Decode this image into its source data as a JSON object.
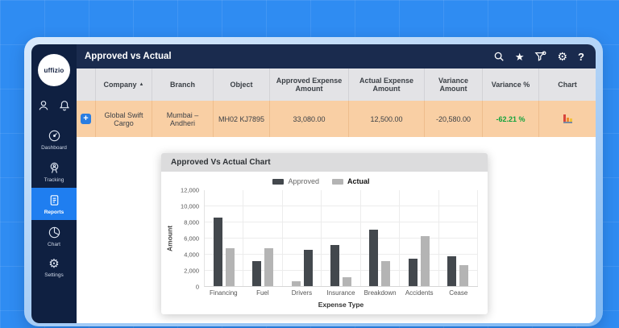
{
  "topbar": {
    "title": "Approved vs Actual"
  },
  "icons": {
    "sort_asc": "▲",
    "star": "★",
    "gear": "⚙",
    "help": "?",
    "plus": "+"
  },
  "sidebar": {
    "logo_text": "uffizio",
    "items": [
      {
        "label": "Dashboard",
        "active": false
      },
      {
        "label": "Tracking",
        "active": false
      },
      {
        "label": "Reports",
        "active": true
      },
      {
        "label": "Chart",
        "active": false
      },
      {
        "label": "Settings",
        "active": false
      }
    ]
  },
  "table": {
    "columns": [
      "Company",
      "Branch",
      "Object",
      "Approved Expense Amount",
      "Actual Expense Amount",
      "Variance Amount",
      "Variance %",
      "Chart"
    ],
    "sorted_column": "Company",
    "sort_direction": "asc",
    "rows": [
      {
        "company": "Global Swift Cargo",
        "branch": "Mumbai – Andheri",
        "object": "MH02 KJ7895",
        "approved_expense_amount": "33,080.00",
        "actual_expense_amount": "12,500.00",
        "variance_amount": "-20,580.00",
        "variance_pct": "-62.21 %"
      }
    ]
  },
  "chart_card": {
    "title": "Approved Vs Actual Chart"
  },
  "chart_data": {
    "type": "bar",
    "title": "Approved Vs Actual Chart",
    "xlabel": "Expense Type",
    "ylabel": "Amount",
    "ylim": [
      0,
      12000
    ],
    "yticks": [
      "0",
      "2,000",
      "4,000",
      "6,000",
      "8,000",
      "10,000",
      "12,000"
    ],
    "grid": true,
    "legend": [
      "Approved",
      "Actual"
    ],
    "legend_position": "top-center",
    "series_colors": {
      "Approved": "#43484d",
      "Actual": "#b4b4b4"
    },
    "categories": [
      "Financing",
      "Fuel",
      "Drivers",
      "Insurance",
      "Breakdown",
      "Accidents",
      "Cease"
    ],
    "series": [
      {
        "name": "Approved",
        "values": [
          8500,
          3100,
          4500,
          5100,
          7000,
          3400,
          3700
        ]
      },
      {
        "name": "Actual",
        "values": [
          4700,
          4700,
          600,
          1100,
          3100,
          6200,
          2600
        ]
      }
    ],
    "groups": [
      {
        "category": "Financing",
        "bars": [
          {
            "series": "Approved",
            "value": 8500
          },
          {
            "series": "Actual",
            "value": 4700
          }
        ]
      },
      {
        "category": "Fuel",
        "bars": [
          {
            "series": "Approved",
            "value": 3100
          },
          {
            "series": "Actual",
            "value": 4700
          }
        ]
      },
      {
        "category": "Drivers",
        "bars": [
          {
            "series": "Actual",
            "value": 600
          },
          {
            "series": "Approved",
            "value": 4500
          }
        ]
      },
      {
        "category": "Insurance",
        "bars": [
          {
            "series": "Approved",
            "value": 5100
          },
          {
            "series": "Actual",
            "value": 1100
          }
        ]
      },
      {
        "category": "Breakdown",
        "bars": [
          {
            "series": "Approved",
            "value": 7000
          },
          {
            "series": "Actual",
            "value": 3100
          }
        ]
      },
      {
        "category": "Accidents",
        "bars": [
          {
            "series": "Approved",
            "value": 3400
          },
          {
            "series": "Actual",
            "value": 6200
          }
        ]
      },
      {
        "category": "Cease",
        "bars": [
          {
            "series": "Approved",
            "value": 3700
          },
          {
            "series": "Actual",
            "value": 2600
          }
        ]
      }
    ]
  },
  "colors": {
    "background": "#2f8cf2",
    "sidebar": "#0f2041",
    "topbar": "#1a2b4e",
    "active_nav": "#1f7ef0",
    "table_header": "#e3e3e6",
    "row_highlight": "#f9cfa4",
    "variance_green": "#13a33c",
    "bar_approved": "#43484d",
    "bar_actual": "#b4b4b4"
  }
}
